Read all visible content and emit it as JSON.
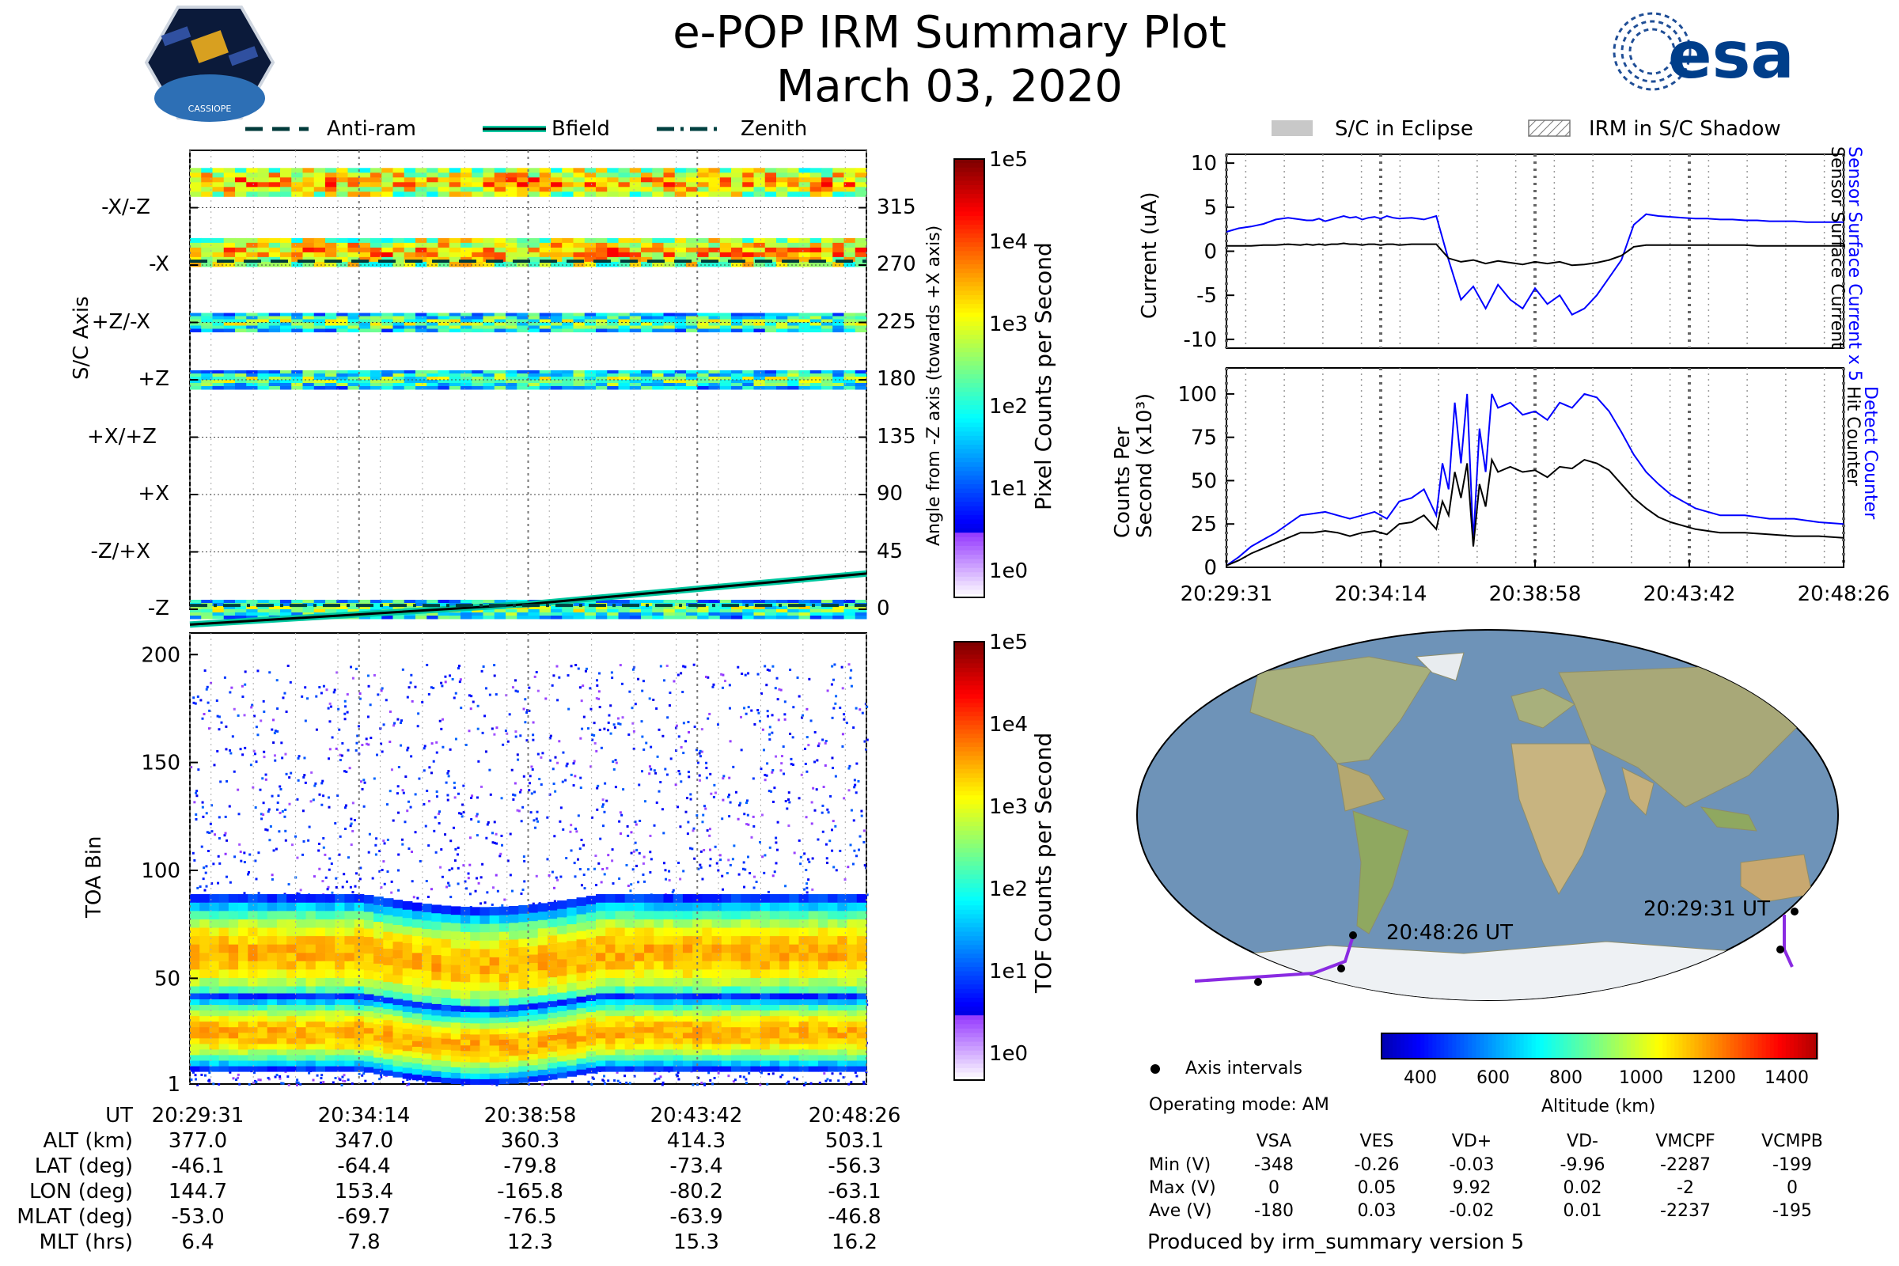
{
  "header": {
    "title": "e-POP IRM Summary Plot",
    "date": "March 03, 2020",
    "left_logo": "CASSIOPE",
    "right_logo": "esa"
  },
  "colors": {
    "blue_series": "#0000ff",
    "black_series": "#000000",
    "track": "#8a2be2",
    "teal_line": "#00c8a0"
  },
  "chart_data": [
    {
      "type": "heatmap",
      "name": "pixel_counts",
      "title": "",
      "ylabel_left": "S/C Axis",
      "ylabel_right": "Angle from -Z axis (towards +X axis)",
      "axis_labels": [
        "-X/-Z",
        "-X",
        "+Z/-X",
        "+Z",
        "+X/+Z",
        "+X",
        "-Z/+X",
        "-Z"
      ],
      "angle_ticks": [
        315,
        270,
        225,
        180,
        135,
        90,
        45,
        0
      ],
      "ylim": [
        0,
        360
      ],
      "legend": {
        "items": [
          "Anti-ram",
          "Bfield",
          "Zenith"
        ],
        "placement": "top"
      },
      "colorbar": {
        "label": "Pixel Counts per Second",
        "ticks": [
          "1e5",
          "1e4",
          "1e3",
          "1e2",
          "1e1",
          "1e0"
        ]
      },
      "bands": [
        {
          "center": 335,
          "intensity": "high"
        },
        {
          "center": 280,
          "intensity": "high"
        },
        {
          "center": 225,
          "intensity": "medium"
        },
        {
          "center": 180,
          "intensity": "medium"
        },
        {
          "center": 0,
          "intensity": "medium"
        }
      ],
      "series": [
        {
          "name": "Anti-ram",
          "style": "dashed",
          "values": [
            273,
            273,
            273,
            273,
            273
          ]
        },
        {
          "name": "Bfield",
          "style": "solid",
          "values": [
            -12,
            -4,
            4,
            16,
            28
          ]
        },
        {
          "name": "Zenith",
          "style": "dash-dot",
          "values": [
            3,
            3,
            3,
            3,
            3
          ]
        }
      ]
    },
    {
      "type": "heatmap",
      "name": "tof_counts",
      "ylabel": "TOA Bin",
      "yticks": [
        1,
        50,
        100,
        150,
        200
      ],
      "ylim": [
        1,
        210
      ],
      "colorbar": {
        "label": "TOF Counts per Second",
        "ticks": [
          "1e5",
          "1e4",
          "1e3",
          "1e2",
          "1e1",
          "1e0"
        ]
      },
      "bands": [
        {
          "name": "main",
          "center": 62,
          "width": 18
        },
        {
          "name": "lower",
          "center": 25,
          "width": 12
        }
      ]
    },
    {
      "type": "line",
      "name": "sensor_current",
      "ylabel": "Current (uA)",
      "yticks": [
        10,
        5,
        0,
        -5,
        -10
      ],
      "ylim": [
        -11,
        11
      ],
      "legend": {
        "items": [
          "S/C in Eclipse",
          "IRM in S/C Shadow"
        ],
        "placement": "top"
      },
      "right_labels": [
        "Sensor Surface Current x 5",
        "Sensor Surface Current"
      ],
      "x": [
        0,
        2,
        4,
        6,
        8,
        10,
        12,
        13,
        14,
        15,
        16,
        17,
        18,
        19,
        20,
        21,
        22,
        23,
        24,
        25,
        26,
        27,
        28,
        30,
        32,
        34,
        36,
        38,
        40,
        42,
        44,
        46,
        48,
        50,
        52,
        54,
        56,
        58,
        60,
        62,
        64,
        66,
        68,
        70,
        72,
        74,
        76,
        78,
        80,
        82,
        84,
        86,
        88,
        90,
        92,
        94,
        96,
        98,
        100
      ],
      "series": [
        {
          "name": "Sensor Surface Current x 5",
          "values": [
            2.2,
            2.6,
            2.8,
            3.1,
            3.6,
            3.8,
            3.6,
            3.5,
            3.5,
            3.7,
            3.4,
            3.6,
            3.8,
            4.0,
            3.8,
            3.9,
            3.6,
            3.8,
            3.9,
            3.7,
            4.0,
            3.8,
            3.7,
            3.8,
            3.6,
            4.0,
            -1.0,
            -5.5,
            -4.0,
            -6.5,
            -3.8,
            -5.5,
            -6.5,
            -4.2,
            -6.0,
            -5.0,
            -7.2,
            -6.5,
            -5.0,
            -3.0,
            -1.0,
            3.0,
            4.2,
            4.0,
            3.9,
            3.8,
            3.7,
            3.7,
            3.6,
            3.6,
            3.5,
            3.5,
            3.4,
            3.4,
            3.4,
            3.3,
            3.3,
            3.3,
            3.3
          ]
        },
        {
          "name": "Sensor Surface Current",
          "values": [
            0.6,
            0.6,
            0.6,
            0.7,
            0.7,
            0.8,
            0.7,
            0.8,
            0.7,
            0.8,
            0.7,
            0.8,
            0.8,
            0.9,
            0.8,
            0.8,
            0.7,
            0.8,
            0.8,
            0.7,
            0.8,
            0.8,
            0.7,
            0.8,
            0.8,
            0.8,
            -0.8,
            -1.2,
            -1.0,
            -1.4,
            -1.1,
            -1.3,
            -1.5,
            -1.2,
            -1.4,
            -1.2,
            -1.6,
            -1.5,
            -1.3,
            -1.0,
            -0.5,
            0.5,
            0.7,
            0.7,
            0.7,
            0.7,
            0.7,
            0.7,
            0.7,
            0.7,
            0.7,
            0.6,
            0.6,
            0.6,
            0.6,
            0.6,
            0.6,
            0.6,
            0.6
          ]
        }
      ]
    },
    {
      "type": "line",
      "name": "hit_counter",
      "ylabel": "Counts Per Second (x10³)",
      "yticks": [
        0,
        25,
        50,
        75,
        100
      ],
      "ylim": [
        0,
        115
      ],
      "right_labels": [
        "Detect Counter",
        "Hit Counter"
      ],
      "xticks": [
        "20:29:31",
        "20:34:14",
        "20:38:58",
        "20:43:42",
        "20:48:26"
      ],
      "x": [
        0,
        2,
        4,
        6,
        8,
        10,
        12,
        14,
        16,
        18,
        20,
        22,
        24,
        26,
        28,
        30,
        32,
        34,
        35,
        36,
        37,
        38,
        39,
        40,
        41,
        42,
        43,
        44,
        46,
        48,
        50,
        52,
        54,
        56,
        58,
        60,
        62,
        64,
        66,
        68,
        70,
        72,
        74,
        76,
        78,
        80,
        84,
        88,
        92,
        96,
        100
      ],
      "series": [
        {
          "name": "Detect Counter",
          "values": [
            1,
            6,
            12,
            16,
            20,
            25,
            30,
            31,
            32,
            30,
            28,
            30,
            32,
            28,
            38,
            40,
            45,
            30,
            60,
            45,
            95,
            60,
            100,
            15,
            80,
            55,
            100,
            92,
            95,
            88,
            90,
            85,
            95,
            92,
            100,
            98,
            90,
            78,
            65,
            55,
            48,
            42,
            38,
            34,
            32,
            30,
            30,
            28,
            28,
            26,
            25
          ]
        },
        {
          "name": "Hit Counter",
          "values": [
            1,
            4,
            8,
            11,
            14,
            17,
            20,
            20,
            21,
            20,
            18,
            20,
            21,
            19,
            25,
            26,
            30,
            22,
            38,
            30,
            55,
            40,
            60,
            12,
            48,
            35,
            62,
            55,
            58,
            55,
            56,
            52,
            58,
            57,
            62,
            60,
            56,
            48,
            40,
            34,
            29,
            26,
            24,
            22,
            21,
            20,
            20,
            19,
            18,
            18,
            17
          ]
        }
      ]
    }
  ],
  "time_axis": {
    "ticks": [
      "20:29:31",
      "20:34:14",
      "20:38:58",
      "20:43:42",
      "20:48:26"
    ]
  },
  "ephemeris": {
    "rows": [
      {
        "label": "UT",
        "values": [
          "20:29:31",
          "20:34:14",
          "20:38:58",
          "20:43:42",
          "20:48:26"
        ]
      },
      {
        "label": "ALT (km)",
        "values": [
          "377.0",
          "347.0",
          "360.3",
          "414.3",
          "503.1"
        ]
      },
      {
        "label": "LAT (deg)",
        "values": [
          "-46.1",
          "-64.4",
          "-79.8",
          "-73.4",
          "-56.3"
        ]
      },
      {
        "label": "LON (deg)",
        "values": [
          "144.7",
          "153.4",
          "-165.8",
          "-80.2",
          "-63.1"
        ]
      },
      {
        "label": "MLAT (deg)",
        "values": [
          "-53.0",
          "-69.7",
          "-76.5",
          "-63.9",
          "-46.8"
        ]
      },
      {
        "label": "MLT (hrs)",
        "values": [
          "6.4",
          "7.8",
          "12.3",
          "15.3",
          "16.2"
        ]
      }
    ]
  },
  "map": {
    "start_label": "20:29:31 UT",
    "end_label": "20:48:26 UT",
    "legend_axis": "Axis intervals",
    "operating_mode": "Operating mode: AM",
    "altitude_colorbar": {
      "label": "Altitude (km)",
      "ticks": [
        "400",
        "600",
        "800",
        "1000",
        "1200",
        "1400"
      ]
    }
  },
  "voltages": {
    "columns": [
      "VSA",
      "VES",
      "VD+",
      "VD-",
      "VMCPF",
      "VCMPB"
    ],
    "rows": [
      {
        "label": "Min (V)",
        "values": [
          "-348",
          "-0.26",
          "-0.03",
          "-9.96",
          "-2287",
          "-199"
        ]
      },
      {
        "label": "Max (V)",
        "values": [
          "0",
          "0.05",
          "9.92",
          "0.02",
          "-2",
          "0"
        ]
      },
      {
        "label": "Ave (V)",
        "values": [
          "-180",
          "0.03",
          "-0.02",
          "0.01",
          "-2237",
          "-195"
        ]
      }
    ]
  },
  "footer": "Produced by irm_summary version 5"
}
